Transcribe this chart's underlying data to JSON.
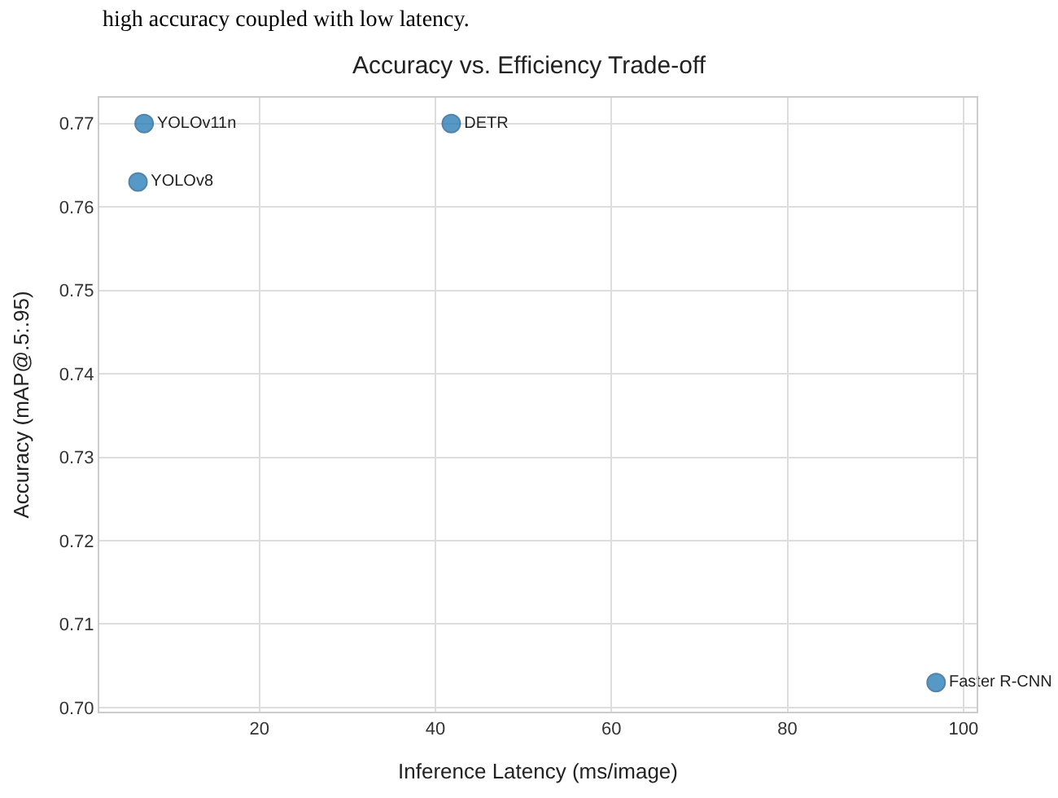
{
  "chart_data": {
    "type": "scatter",
    "title": "Accuracy vs. Efficiency Trade-off",
    "xlabel": "Inference Latency (ms/image)",
    "ylabel": "Accuracy (mAP@.5:.95)",
    "annotations": [
      "high accuracy coupled with low latency."
    ],
    "series": [
      {
        "name": "YOLOv11n",
        "color": "#1f77b4",
        "x": [
          6.9
        ],
        "values": [
          0.77
        ]
      },
      {
        "name": "YOLOv8",
        "color": "#1f77b4",
        "x": [
          6.2
        ],
        "values": [
          0.763
        ]
      },
      {
        "name": "DETR",
        "color": "#1f77b4",
        "x": [
          41.8
        ],
        "values": [
          0.77
        ]
      },
      {
        "name": "Faster R-CNN",
        "color": "#1f77b4",
        "x": [
          96.9
        ],
        "values": [
          0.703
        ]
      }
    ],
    "xlim": [
      1.8,
      101.5
    ],
    "xticks": [
      20,
      40,
      60,
      80,
      100
    ],
    "ylim": [
      0.6995,
      0.7731
    ],
    "yticks": [
      {
        "value": 0.7,
        "label": "0.70"
      },
      0.71,
      0.72,
      0.73,
      0.74,
      0.75,
      0.76,
      0.77
    ],
    "grid": true,
    "marker": "circle",
    "legend": false
  }
}
